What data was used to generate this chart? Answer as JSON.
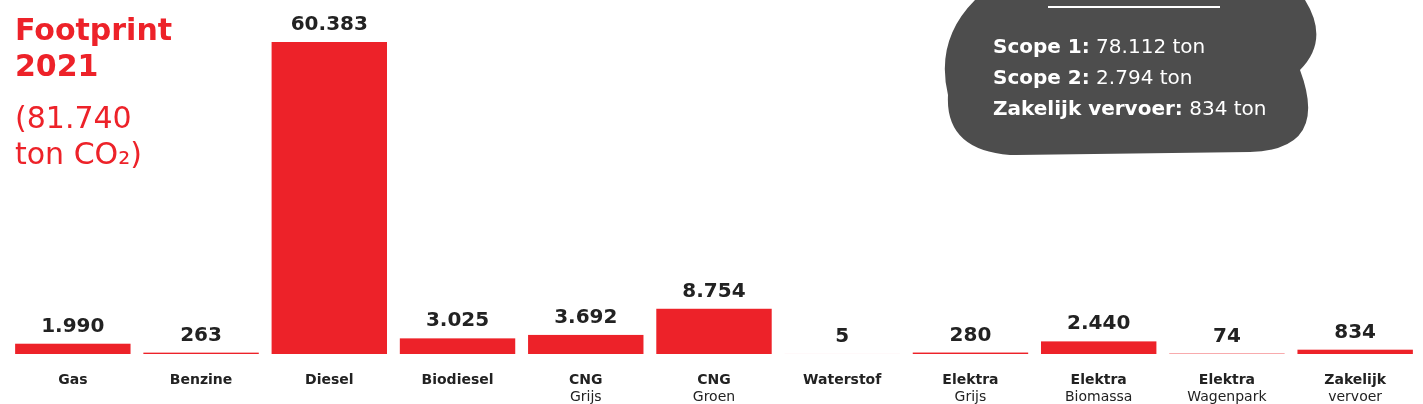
{
  "chart_data": {
    "type": "bar",
    "title": "Footprint 2021",
    "subtitle": "(81.740 ton CO₂)",
    "categories": [
      "Gas",
      "Benzine",
      "Diesel",
      "Biodiesel",
      "CNG\nGrijs",
      "CNG\nGroen",
      "Waterstof",
      "Elektra\nGrijs",
      "Elektra\nBiomassa",
      "Elektra\nWagenpark",
      "Zakelijk\nvervoer"
    ],
    "values": [
      1990,
      263,
      60383,
      3025,
      3692,
      8754,
      5,
      280,
      2440,
      74,
      834
    ],
    "value_labels": [
      "1.990",
      "263",
      "60.383",
      "3.025",
      "3.692",
      "8.754",
      "5",
      "280",
      "2.440",
      "74",
      "834"
    ],
    "color": "#ed2229",
    "annotations": [
      "Scope 1: 78.112 ton",
      "Scope 2: 2.794 ton",
      "Zakelijk vervoer: 834 ton"
    ]
  }
}
